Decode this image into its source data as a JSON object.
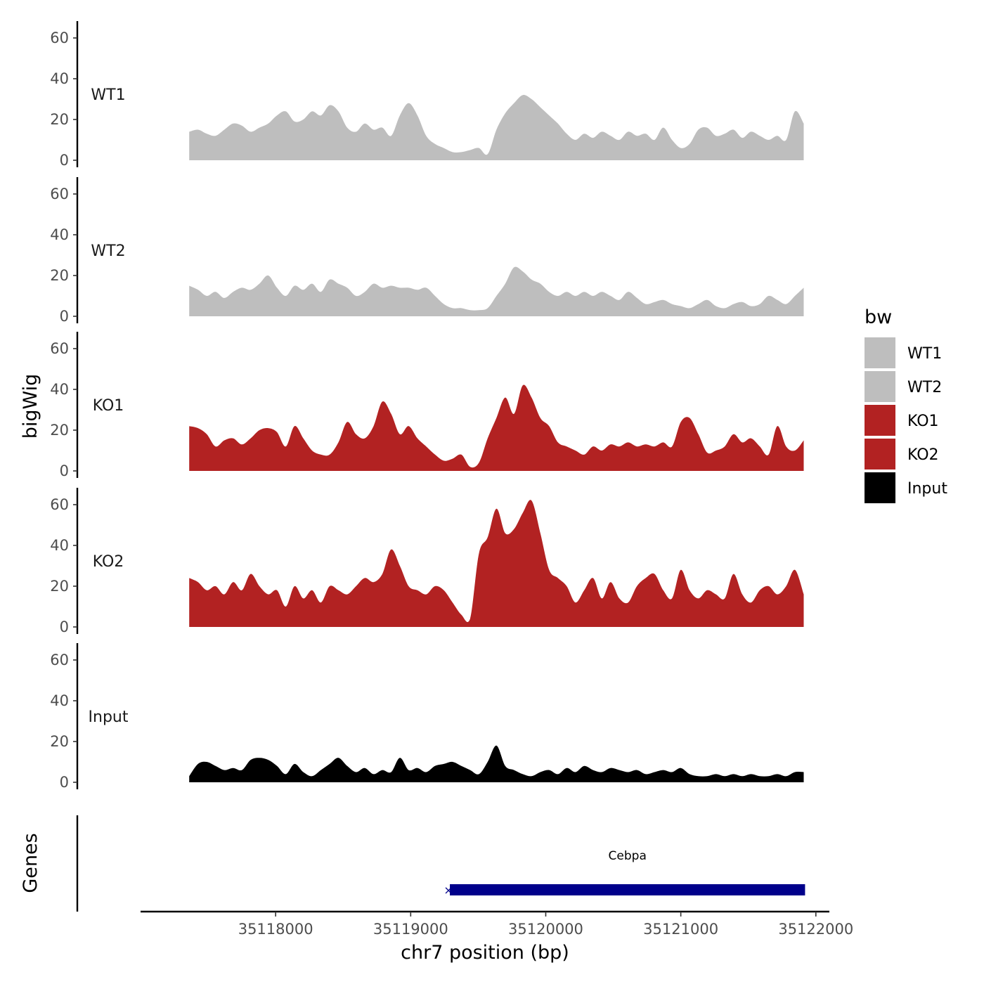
{
  "chart_data": {
    "type": "area",
    "ylabel": "bigWig",
    "xlabel": "chr7 position (bp)",
    "ylim": [
      0,
      65
    ],
    "yticks": [
      0,
      20,
      40,
      60
    ],
    "xlim": [
      35117000,
      35122100
    ],
    "xticks": [
      35118000,
      35119000,
      35120000,
      35121000,
      35122000
    ],
    "xtick_labels": [
      "35118000",
      "35119000",
      "35120000",
      "35121000",
      "35122000"
    ],
    "legend": {
      "title": "bw",
      "placement": "right",
      "entries": [
        {
          "label": "WT1",
          "color": "#bebebe"
        },
        {
          "label": "WT2",
          "color": "#bebebe"
        },
        {
          "label": "KO1",
          "color": "#b22222"
        },
        {
          "label": "KO2",
          "color": "#b22222"
        },
        {
          "label": "Input",
          "color": "#000000"
        }
      ]
    },
    "x": [
      35117360,
      35117425,
      35117490,
      35117555,
      35117620,
      35117685,
      35117750,
      35117815,
      35117880,
      35117945,
      35118010,
      35118075,
      35118140,
      35118205,
      35118270,
      35118335,
      35118400,
      35118465,
      35118530,
      35118595,
      35118660,
      35118725,
      35118790,
      35118855,
      35118920,
      35118985,
      35119050,
      35119115,
      35119180,
      35119245,
      35119310,
      35119375,
      35119440,
      35119505,
      35119570,
      35119635,
      35119700,
      35119765,
      35119830,
      35119895,
      35119960,
      35120025,
      35120090,
      35120155,
      35120220,
      35120285,
      35120350,
      35120415,
      35120480,
      35120545,
      35120610,
      35120675,
      35120740,
      35120805,
      35120870,
      35120935,
      35121000,
      35121065,
      35121130,
      35121195,
      35121260,
      35121325,
      35121390,
      35121455,
      35121520,
      35121585,
      35121650,
      35121715,
      35121780,
      35121845,
      35121910
    ],
    "series": [
      {
        "name": "WT1",
        "color": "#bebebe",
        "values": [
          14,
          15,
          13,
          12,
          15,
          18,
          17,
          14,
          16,
          18,
          22,
          24,
          19,
          20,
          24,
          22,
          27,
          24,
          16,
          14,
          18,
          15,
          16,
          12,
          22,
          28,
          22,
          12,
          8,
          6,
          4,
          4,
          5,
          6,
          3,
          15,
          23,
          28,
          32,
          30,
          26,
          22,
          18,
          13,
          10,
          13,
          11,
          14,
          12,
          10,
          14,
          12,
          13,
          10,
          16,
          10,
          6,
          8,
          15,
          16,
          12,
          13,
          15,
          11,
          14,
          12,
          10,
          12,
          10,
          24,
          18
        ]
      },
      {
        "name": "WT2",
        "color": "#bebebe",
        "values": [
          15,
          13,
          10,
          12,
          9,
          12,
          14,
          13,
          16,
          20,
          14,
          10,
          15,
          13,
          16,
          12,
          18,
          16,
          14,
          10,
          12,
          16,
          14,
          15,
          14,
          14,
          13,
          14,
          10,
          6,
          4,
          4,
          3,
          3,
          4,
          10,
          16,
          24,
          22,
          18,
          16,
          12,
          10,
          12,
          10,
          12,
          10,
          12,
          10,
          8,
          12,
          9,
          6,
          7,
          8,
          6,
          5,
          4,
          6,
          8,
          5,
          4,
          6,
          7,
          5,
          6,
          10,
          8,
          6,
          10,
          14
        ]
      },
      {
        "name": "KO1",
        "color": "#b22222",
        "values": [
          22,
          21,
          18,
          12,
          15,
          16,
          13,
          16,
          20,
          21,
          19,
          12,
          22,
          16,
          10,
          8,
          8,
          14,
          24,
          18,
          16,
          22,
          34,
          28,
          18,
          22,
          16,
          12,
          8,
          5,
          6,
          8,
          2,
          4,
          16,
          26,
          36,
          28,
          42,
          36,
          26,
          22,
          14,
          12,
          10,
          8,
          12,
          10,
          13,
          12,
          14,
          12,
          13,
          12,
          14,
          12,
          24,
          26,
          18,
          9,
          10,
          12,
          18,
          14,
          16,
          12,
          8,
          22,
          12,
          10,
          15
        ]
      },
      {
        "name": "KO2",
        "color": "#b22222",
        "values": [
          24,
          22,
          18,
          20,
          16,
          22,
          18,
          26,
          20,
          16,
          18,
          10,
          20,
          14,
          18,
          12,
          20,
          18,
          16,
          20,
          24,
          22,
          26,
          38,
          30,
          20,
          18,
          16,
          20,
          18,
          12,
          6,
          4,
          36,
          44,
          58,
          46,
          48,
          56,
          62,
          46,
          28,
          24,
          20,
          12,
          18,
          24,
          14,
          22,
          14,
          12,
          20,
          24,
          26,
          18,
          14,
          28,
          18,
          14,
          18,
          16,
          14,
          26,
          16,
          12,
          18,
          20,
          16,
          20,
          28,
          16
        ]
      },
      {
        "name": "Input",
        "color": "#000000",
        "values": [
          3,
          9,
          10,
          8,
          6,
          7,
          6,
          11,
          12,
          11,
          8,
          4,
          9,
          5,
          3,
          6,
          9,
          12,
          8,
          5,
          7,
          4,
          6,
          5,
          12,
          6,
          7,
          5,
          8,
          9,
          10,
          8,
          6,
          4,
          10,
          18,
          8,
          6,
          4,
          3,
          5,
          6,
          4,
          7,
          5,
          8,
          6,
          5,
          7,
          6,
          5,
          6,
          4,
          5,
          6,
          5,
          7,
          4,
          3,
          3,
          4,
          3,
          4,
          3,
          4,
          3,
          3,
          4,
          3,
          5,
          5
        ]
      }
    ],
    "genes_track": {
      "ylabel": "Genes",
      "genes": [
        {
          "name": "Cebpa",
          "start": 35119290,
          "end": 35121920,
          "color": "#00008b"
        }
      ]
    }
  }
}
